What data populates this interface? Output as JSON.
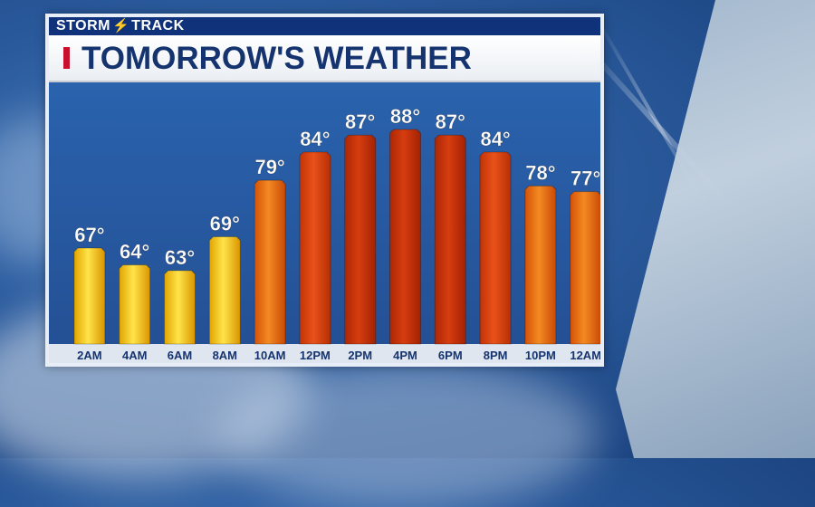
{
  "brand": {
    "name_left": "STORM",
    "name_right": "TRACK"
  },
  "title": "TOMORROW'S WEATHER",
  "chart_data": {
    "type": "bar",
    "title": "TOMORROW'S WEATHER",
    "xlabel": "",
    "ylabel": "",
    "categories": [
      "2AM",
      "4AM",
      "6AM",
      "8AM",
      "10AM",
      "12PM",
      "2PM",
      "4PM",
      "6PM",
      "8PM",
      "10PM",
      "12AM"
    ],
    "values": [
      67,
      64,
      63,
      69,
      79,
      84,
      87,
      88,
      87,
      84,
      78,
      77
    ],
    "value_labels": [
      "67°",
      "64°",
      "63°",
      "69°",
      "79°",
      "84°",
      "87°",
      "88°",
      "87°",
      "84°",
      "78°",
      "77°"
    ],
    "grid": false,
    "legend": "none"
  },
  "colors": {
    "cool": "#f6cf10",
    "mild": "#ee6a12",
    "warm": "#d93c0c",
    "hot": "#c42d08",
    "axis_band": "#dfe6f0",
    "title_text": "#15346f",
    "accent": "#c8102e"
  }
}
